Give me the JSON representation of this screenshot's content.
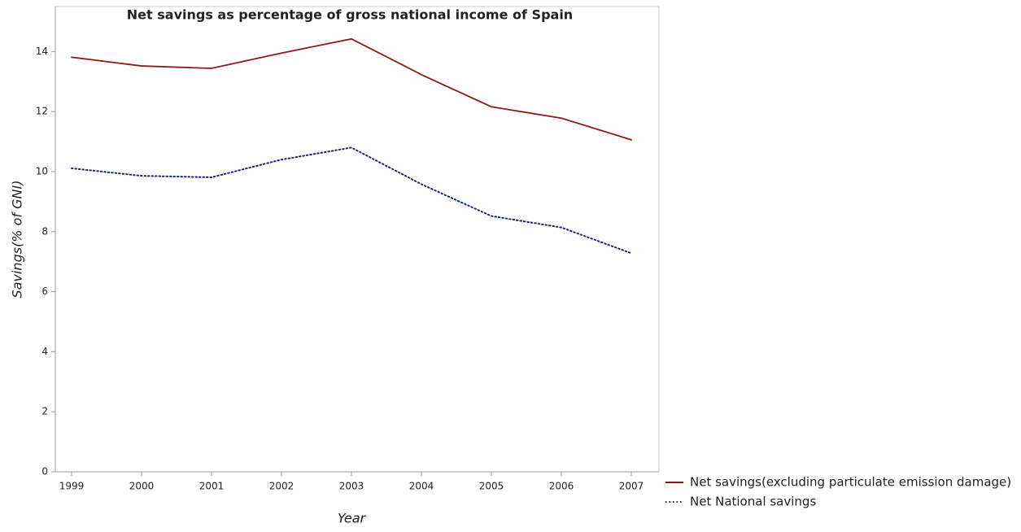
{
  "chart_data": {
    "type": "line",
    "title": "Net savings as percentage of gross national income of Spain",
    "xlabel": "Year",
    "ylabel": "Savings(% of GNI)",
    "categories": [
      "1999",
      "2000",
      "2001",
      "2002",
      "2003",
      "2004",
      "2005",
      "2006",
      "2007"
    ],
    "series": [
      {
        "name": "Net savings(excluding particulate emission damage)",
        "color": "#8b1a1a",
        "dash": "solid",
        "values": [
          13.81,
          13.52,
          13.44,
          13.95,
          14.42,
          13.23,
          12.16,
          11.78,
          11.06
        ]
      },
      {
        "name": "Net National savings",
        "color": "#1a2a6b",
        "dash": "dotted",
        "values": [
          10.11,
          9.86,
          9.81,
          10.4,
          10.8,
          9.58,
          8.52,
          8.14,
          7.28
        ]
      }
    ],
    "ylim": [
      0,
      15.5
    ],
    "yticks": [
      0,
      2,
      4,
      6,
      8,
      10,
      12,
      14
    ],
    "grid": false,
    "legend": "bottom-right"
  }
}
